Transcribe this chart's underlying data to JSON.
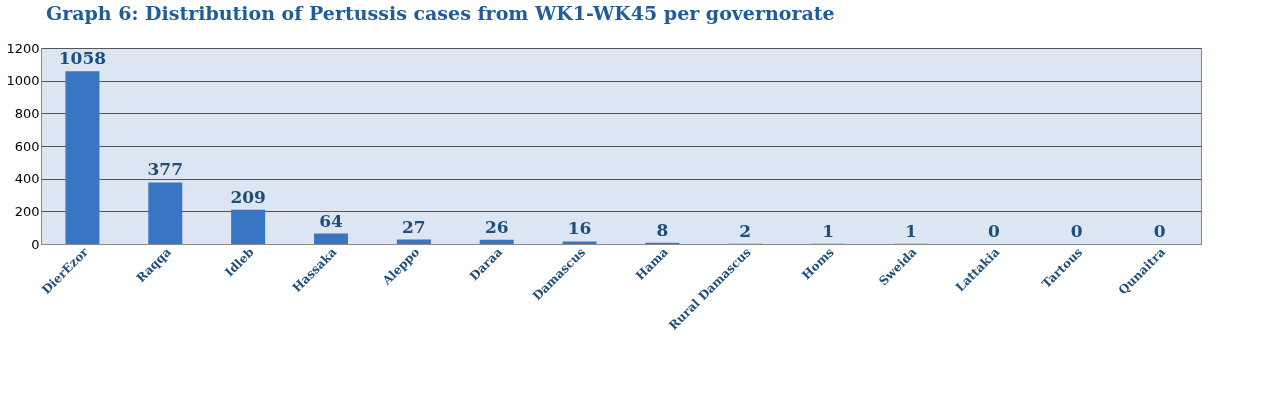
{
  "chart_data": {
    "type": "bar",
    "title": "Graph 6: Distribution of Pertussis cases from WK1-WK45 per governorate",
    "categories": [
      "DierEzor",
      "Raqqa",
      "Idleb",
      "Hassaka",
      "Aleppo",
      "Daraa",
      "Damascus",
      "Hama",
      "Rural Damascus",
      "Homs",
      "Sweida",
      "Lattakia",
      "Tartous",
      "Qunaitra"
    ],
    "values": [
      1058,
      377,
      209,
      64,
      27,
      26,
      16,
      8,
      2,
      1,
      1,
      0,
      0,
      0
    ],
    "color": "#3a75c4",
    "ylim": [
      0,
      1200
    ],
    "yticks": [
      0,
      200,
      400,
      600,
      800,
      1000,
      1200
    ],
    "grid": "y",
    "data_labels": true
  }
}
